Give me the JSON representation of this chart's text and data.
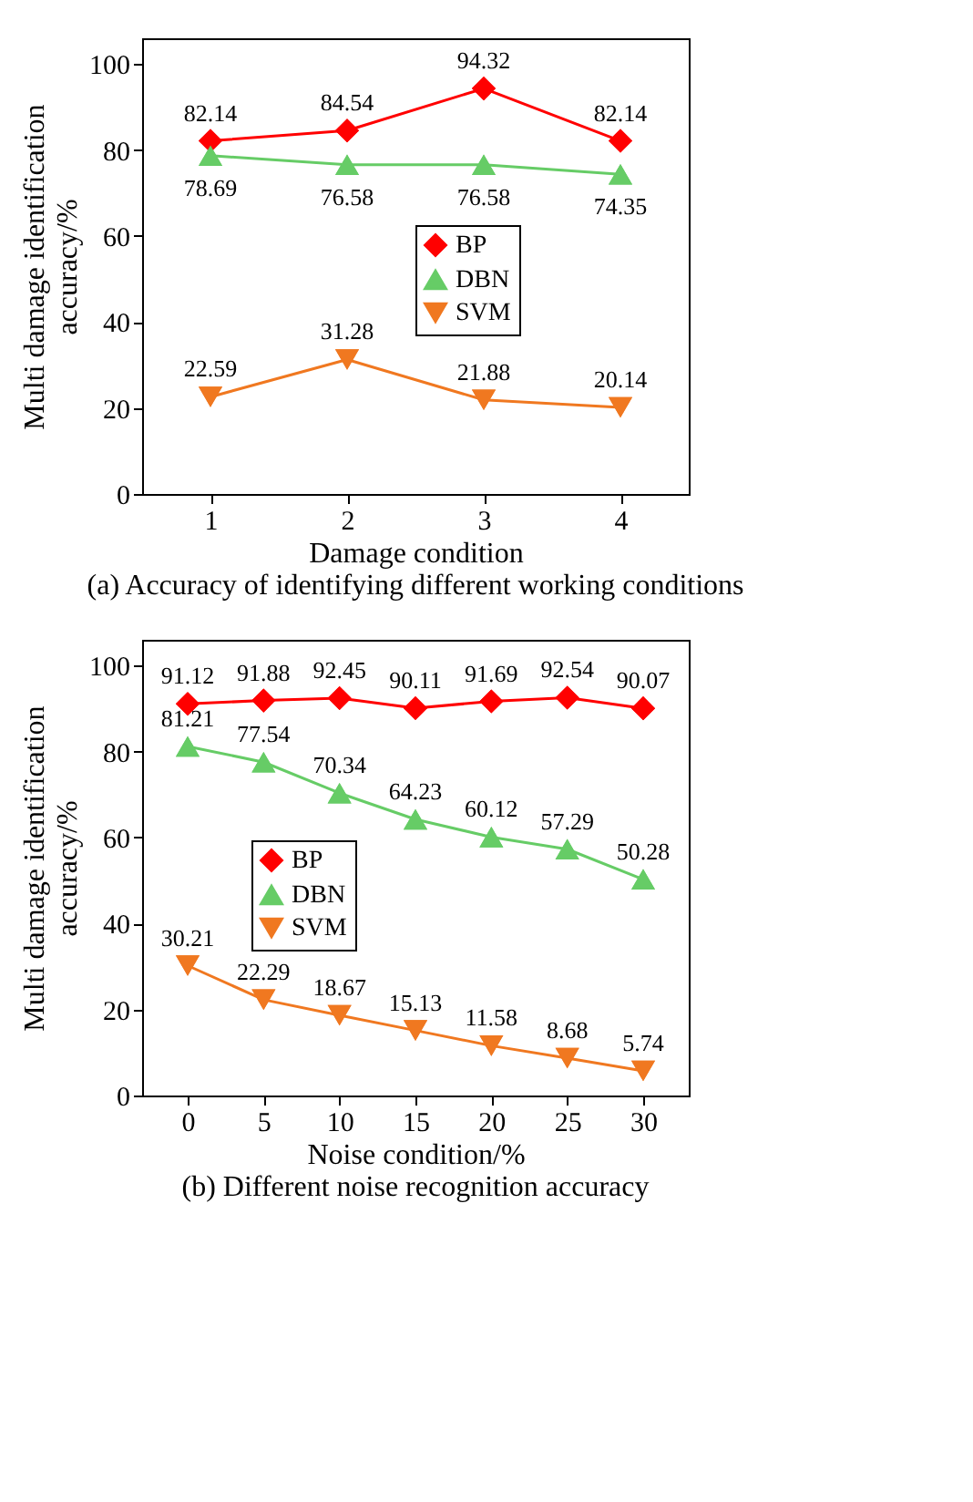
{
  "chart_data": [
    {
      "type": "line",
      "title": "(a) Accuracy of identifying different working conditions",
      "xlabel": "Damage condition",
      "ylabel": "Multi damage identification accuracy/%",
      "x": [
        1,
        2,
        3,
        4
      ],
      "xlim": [
        0.5,
        4.5
      ],
      "xticks": [
        1,
        2,
        3,
        4
      ],
      "ylim": [
        0,
        106
      ],
      "yticks": [
        0,
        20,
        40,
        60,
        80,
        100
      ],
      "data_labels": true,
      "legend": "center",
      "grid": false,
      "series": [
        {
          "name": "BP",
          "color": "#ff0000",
          "marker": "diamond",
          "values": [
            82.14,
            84.54,
            94.32,
            82.14
          ]
        },
        {
          "name": "DBN",
          "color": "#66cc66",
          "marker": "triangle",
          "values": [
            78.69,
            76.58,
            76.58,
            74.35
          ]
        },
        {
          "name": "SVM",
          "color": "#f07820",
          "marker": "triangle-down",
          "values": [
            22.59,
            31.28,
            21.88,
            20.14
          ]
        }
      ]
    },
    {
      "type": "line",
      "title": "(b) Different noise recognition accuracy",
      "xlabel": "Noise condition/%",
      "ylabel": "Multi damage identification accuracy/%",
      "x": [
        0,
        5,
        10,
        15,
        20,
        25,
        30
      ],
      "xlim": [
        -3,
        33
      ],
      "xticks": [
        0,
        5,
        10,
        15,
        20,
        25,
        30
      ],
      "ylim": [
        0,
        106
      ],
      "yticks": [
        0,
        20,
        40,
        60,
        80,
        100
      ],
      "data_labels": true,
      "legend": "left",
      "grid": false,
      "series": [
        {
          "name": "BP",
          "color": "#ff0000",
          "marker": "diamond",
          "values": [
            91.12,
            91.88,
            92.45,
            90.11,
            91.69,
            92.54,
            90.07
          ]
        },
        {
          "name": "DBN",
          "color": "#66cc66",
          "marker": "triangle",
          "values": [
            81.21,
            77.54,
            70.34,
            64.23,
            60.12,
            57.29,
            50.28
          ]
        },
        {
          "name": "SVM",
          "color": "#f07820",
          "marker": "triangle-down",
          "values": [
            30.21,
            22.29,
            18.67,
            15.13,
            11.58,
            8.68,
            5.74
          ]
        }
      ]
    }
  ]
}
